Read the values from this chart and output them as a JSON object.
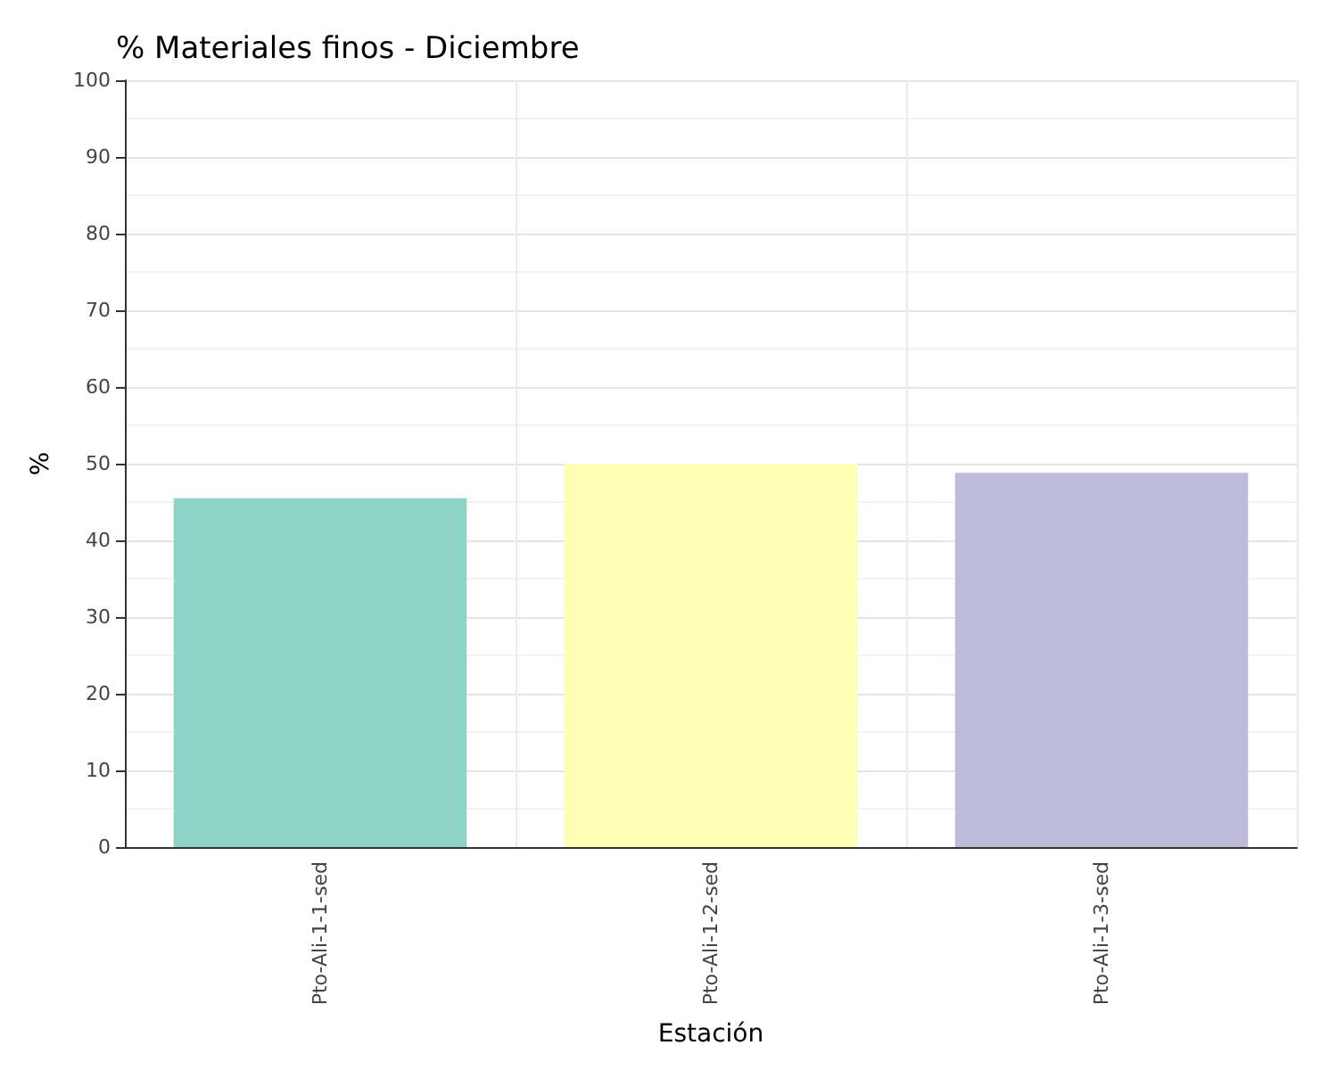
{
  "chart_data": {
    "type": "bar",
    "title": "% Materiales finos - Diciembre",
    "xlabel": "Estación",
    "ylabel": "%",
    "categories": [
      "Pto-Ali-1-1-sed",
      "Pto-Ali-1-2-sed",
      "Pto-Ali-1-3-sed"
    ],
    "values": [
      45.5,
      50,
      48.8
    ],
    "colors": [
      "#8dd3c7",
      "#ffffb3",
      "#bebada"
    ],
    "ylim": [
      0,
      100
    ],
    "yticks": [
      0,
      10,
      20,
      30,
      40,
      50,
      60,
      70,
      80,
      90,
      100
    ],
    "grid": true
  }
}
